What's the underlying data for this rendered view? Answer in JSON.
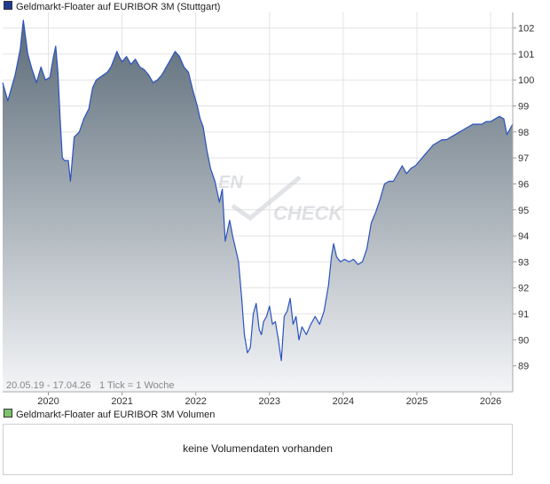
{
  "legend": {
    "price_label": "Geldmarkt-Floater auf EURIBOR 3M (Stuttgart)",
    "volume_label": "Geldmarkt-Floater auf EURIBOR 3M Volumen",
    "price_color": "#1f3a93",
    "volume_color": "#7dc36b"
  },
  "range_text": "20.05.19 - 17.04.26",
  "tick_text": "1 Tick = 1 Woche",
  "watermark": {
    "top": "EN",
    "bottom": "CHECK"
  },
  "volume": {
    "message": "keine Volumendaten vorhanden"
  },
  "colors": {
    "line": "#2a52be",
    "fill_top": "#5b6b78",
    "fill_bottom": "#f4f5f7",
    "grid": "#e3e3e3"
  },
  "chart_data": {
    "type": "area",
    "title": "Geldmarkt-Floater auf EURIBOR 3M (Stuttgart)",
    "xlabel": "",
    "ylabel": "",
    "x_ticks": [
      "2020",
      "2021",
      "2022",
      "2023",
      "2024",
      "2025",
      "2026"
    ],
    "y_ticks": [
      89,
      90,
      91,
      92,
      93,
      94,
      95,
      96,
      97,
      98,
      99,
      100,
      101,
      102
    ],
    "ylim": [
      88,
      102.6
    ],
    "xlim": [
      2019.38,
      2026.3
    ],
    "grid": true,
    "series": [
      {
        "name": "Geldmarkt-Floater auf EURIBOR 3M (Stuttgart)",
        "points": [
          [
            2019.38,
            99.9
          ],
          [
            2019.45,
            99.2
          ],
          [
            2019.55,
            100.2
          ],
          [
            2019.62,
            101.2
          ],
          [
            2019.66,
            102.3
          ],
          [
            2019.72,
            101.0
          ],
          [
            2019.78,
            100.4
          ],
          [
            2019.84,
            99.9
          ],
          [
            2019.9,
            100.5
          ],
          [
            2019.96,
            100.0
          ],
          [
            2020.02,
            100.1
          ],
          [
            2020.07,
            100.9
          ],
          [
            2020.1,
            101.3
          ],
          [
            2020.13,
            100.3
          ],
          [
            2020.16,
            98.5
          ],
          [
            2020.19,
            97.0
          ],
          [
            2020.22,
            96.9
          ],
          [
            2020.27,
            96.9
          ],
          [
            2020.3,
            96.1
          ],
          [
            2020.35,
            97.8
          ],
          [
            2020.42,
            98.0
          ],
          [
            2020.48,
            98.5
          ],
          [
            2020.55,
            98.9
          ],
          [
            2020.6,
            99.7
          ],
          [
            2020.65,
            100.0
          ],
          [
            2020.7,
            100.1
          ],
          [
            2020.75,
            100.2
          ],
          [
            2020.8,
            100.3
          ],
          [
            2020.85,
            100.5
          ],
          [
            2020.89,
            100.8
          ],
          [
            2020.93,
            101.1
          ],
          [
            2020.96,
            100.9
          ],
          [
            2021.0,
            100.7
          ],
          [
            2021.06,
            100.9
          ],
          [
            2021.12,
            100.6
          ],
          [
            2021.18,
            100.8
          ],
          [
            2021.24,
            100.5
          ],
          [
            2021.3,
            100.4
          ],
          [
            2021.36,
            100.2
          ],
          [
            2021.42,
            99.9
          ],
          [
            2021.48,
            100.0
          ],
          [
            2021.54,
            100.2
          ],
          [
            2021.6,
            100.5
          ],
          [
            2021.66,
            100.8
          ],
          [
            2021.72,
            101.1
          ],
          [
            2021.78,
            100.9
          ],
          [
            2021.84,
            100.5
          ],
          [
            2021.9,
            100.3
          ],
          [
            2021.96,
            99.6
          ],
          [
            2022.02,
            99.0
          ],
          [
            2022.06,
            98.5
          ],
          [
            2022.1,
            98.2
          ],
          [
            2022.15,
            97.3
          ],
          [
            2022.2,
            96.6
          ],
          [
            2022.26,
            96.1
          ],
          [
            2022.32,
            95.3
          ],
          [
            2022.36,
            95.8
          ],
          [
            2022.4,
            93.8
          ],
          [
            2022.46,
            94.6
          ],
          [
            2022.5,
            94.0
          ],
          [
            2022.54,
            93.5
          ],
          [
            2022.58,
            93.0
          ],
          [
            2022.62,
            91.7
          ],
          [
            2022.66,
            90.2
          ],
          [
            2022.7,
            89.5
          ],
          [
            2022.74,
            89.7
          ],
          [
            2022.78,
            91.0
          ],
          [
            2022.82,
            91.4
          ],
          [
            2022.86,
            90.4
          ],
          [
            2022.89,
            90.2
          ],
          [
            2022.92,
            90.7
          ],
          [
            2022.96,
            90.9
          ],
          [
            2023.0,
            91.3
          ],
          [
            2023.04,
            90.6
          ],
          [
            2023.08,
            90.7
          ],
          [
            2023.12,
            90.0
          ],
          [
            2023.16,
            89.2
          ],
          [
            2023.2,
            90.9
          ],
          [
            2023.24,
            91.1
          ],
          [
            2023.28,
            91.6
          ],
          [
            2023.32,
            90.6
          ],
          [
            2023.36,
            90.9
          ],
          [
            2023.4,
            90.0
          ],
          [
            2023.44,
            90.5
          ],
          [
            2023.5,
            90.2
          ],
          [
            2023.56,
            90.6
          ],
          [
            2023.62,
            90.9
          ],
          [
            2023.68,
            90.6
          ],
          [
            2023.74,
            91.1
          ],
          [
            2023.8,
            92.1
          ],
          [
            2023.84,
            93.2
          ],
          [
            2023.87,
            93.7
          ],
          [
            2023.91,
            93.2
          ],
          [
            2023.96,
            93.0
          ],
          [
            2024.02,
            93.1
          ],
          [
            2024.08,
            93.0
          ],
          [
            2024.14,
            93.1
          ],
          [
            2024.2,
            92.9
          ],
          [
            2024.26,
            93.0
          ],
          [
            2024.32,
            93.5
          ],
          [
            2024.38,
            94.5
          ],
          [
            2024.44,
            94.9
          ],
          [
            2024.5,
            95.4
          ],
          [
            2024.56,
            96.0
          ],
          [
            2024.62,
            96.1
          ],
          [
            2024.68,
            96.1
          ],
          [
            2024.74,
            96.4
          ],
          [
            2024.8,
            96.7
          ],
          [
            2024.86,
            96.4
          ],
          [
            2024.92,
            96.6
          ],
          [
            2024.98,
            96.7
          ],
          [
            2025.04,
            96.9
          ],
          [
            2025.1,
            97.1
          ],
          [
            2025.16,
            97.3
          ],
          [
            2025.22,
            97.5
          ],
          [
            2025.28,
            97.6
          ],
          [
            2025.34,
            97.7
          ],
          [
            2025.4,
            97.7
          ],
          [
            2025.46,
            97.8
          ],
          [
            2025.52,
            97.9
          ],
          [
            2025.58,
            98.0
          ],
          [
            2025.64,
            98.1
          ],
          [
            2025.7,
            98.2
          ],
          [
            2025.76,
            98.3
          ],
          [
            2025.82,
            98.3
          ],
          [
            2025.88,
            98.3
          ],
          [
            2025.94,
            98.4
          ],
          [
            2026.0,
            98.4
          ],
          [
            2026.06,
            98.5
          ],
          [
            2026.12,
            98.6
          ],
          [
            2026.18,
            98.5
          ],
          [
            2026.22,
            97.9
          ],
          [
            2026.26,
            98.1
          ],
          [
            2026.3,
            98.3
          ]
        ]
      }
    ]
  }
}
